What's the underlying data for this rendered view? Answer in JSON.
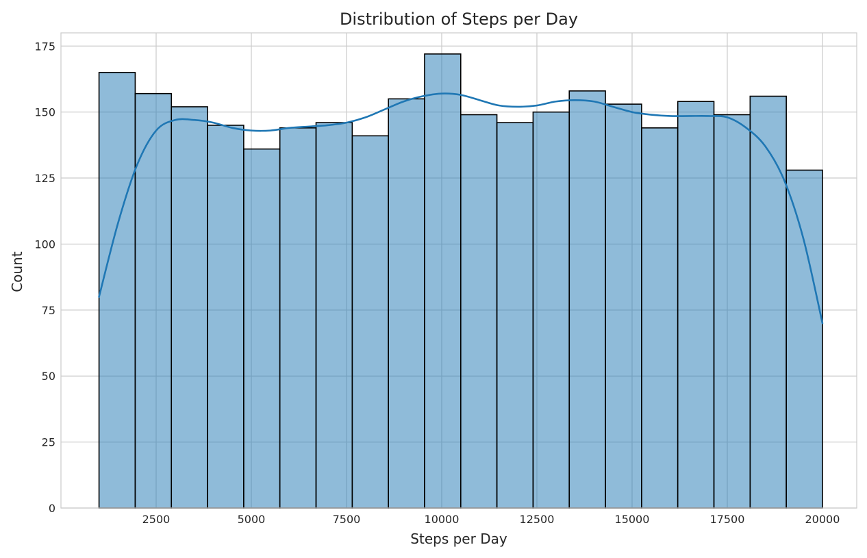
{
  "chart_data": {
    "type": "bar",
    "subtype": "histogram",
    "title": "Distribution of Steps per Day",
    "xlabel": "Steps per Day",
    "ylabel": "Count",
    "xlim": [
      0,
      20900
    ],
    "ylim": [
      0,
      180
    ],
    "x_ticks": [
      2500,
      5000,
      7500,
      10000,
      12500,
      15000,
      17500,
      20000
    ],
    "y_ticks": [
      0,
      25,
      50,
      75,
      100,
      125,
      150,
      175
    ],
    "grid": true,
    "bins": [
      {
        "start": 1000,
        "end": 1950,
        "count": 165
      },
      {
        "start": 1950,
        "end": 2900,
        "count": 157
      },
      {
        "start": 2900,
        "end": 3850,
        "count": 152
      },
      {
        "start": 3850,
        "end": 4800,
        "count": 145
      },
      {
        "start": 4800,
        "end": 5750,
        "count": 136
      },
      {
        "start": 5750,
        "end": 6700,
        "count": 144
      },
      {
        "start": 6700,
        "end": 7650,
        "count": 146
      },
      {
        "start": 7650,
        "end": 8600,
        "count": 141
      },
      {
        "start": 8600,
        "end": 9550,
        "count": 155
      },
      {
        "start": 9550,
        "end": 10500,
        "count": 172
      },
      {
        "start": 10500,
        "end": 11450,
        "count": 149
      },
      {
        "start": 11450,
        "end": 12400,
        "count": 146
      },
      {
        "start": 12400,
        "end": 13350,
        "count": 150
      },
      {
        "start": 13350,
        "end": 14300,
        "count": 158
      },
      {
        "start": 14300,
        "end": 15250,
        "count": 153
      },
      {
        "start": 15250,
        "end": 16200,
        "count": 144
      },
      {
        "start": 16200,
        "end": 17150,
        "count": 154
      },
      {
        "start": 17150,
        "end": 18100,
        "count": 149
      },
      {
        "start": 18100,
        "end": 19050,
        "count": 156
      },
      {
        "start": 19050,
        "end": 20000,
        "count": 128
      }
    ],
    "kde": {
      "x": [
        1000,
        1500,
        2000,
        2500,
        3000,
        3500,
        4000,
        4500,
        5000,
        5500,
        6000,
        6500,
        7000,
        7500,
        8000,
        8500,
        9000,
        9500,
        10000,
        10500,
        11000,
        11500,
        12000,
        12500,
        13000,
        13500,
        14000,
        14500,
        15000,
        15500,
        16000,
        16500,
        17000,
        17500,
        18000,
        18500,
        19000,
        19500,
        20000
      ],
      "y": [
        80,
        108,
        130,
        143,
        147,
        147,
        146,
        144,
        143,
        143,
        144,
        144.5,
        145,
        146,
        148,
        151,
        154,
        156,
        157,
        156.5,
        154.5,
        152.5,
        152,
        152.5,
        154,
        154.5,
        154,
        152,
        150,
        149,
        148.5,
        148.5,
        148.5,
        148,
        144,
        137,
        124,
        102,
        70
      ]
    },
    "colors": {
      "bar_fill": "#1f77b4",
      "bar_fill_opacity": 0.5,
      "bar_edge": "#000000",
      "kde_line": "#1f77b4",
      "grid": "#cccccc",
      "spine": "#cccccc",
      "text": "#262626"
    }
  }
}
